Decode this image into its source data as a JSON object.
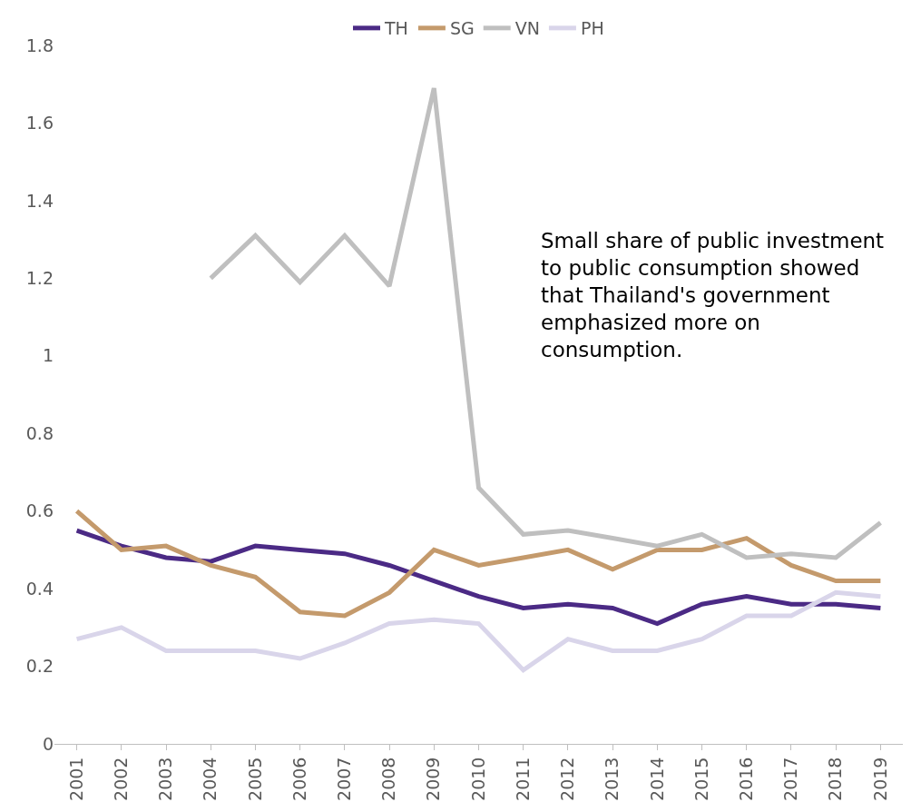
{
  "chart_data": {
    "type": "line",
    "categories": [
      "2001",
      "2002",
      "2003",
      "2004",
      "2005",
      "2006",
      "2007",
      "2008",
      "2009",
      "2010",
      "2011",
      "2012",
      "2013",
      "2014",
      "2015",
      "2016",
      "2017",
      "2018",
      "2019"
    ],
    "series": [
      {
        "name": "TH",
        "color": "#4b2a85",
        "values": [
          0.55,
          0.51,
          0.48,
          0.47,
          0.51,
          0.5,
          0.49,
          0.46,
          0.42,
          0.38,
          0.35,
          0.36,
          0.35,
          0.31,
          0.36,
          0.38,
          0.36,
          0.36,
          0.35
        ]
      },
      {
        "name": "SG",
        "color": "#c49a6c",
        "values": [
          0.6,
          0.5,
          0.51,
          0.46,
          0.43,
          0.34,
          0.33,
          0.39,
          0.5,
          0.46,
          0.48,
          0.5,
          0.45,
          0.5,
          0.5,
          0.53,
          0.46,
          0.42,
          0.42
        ]
      },
      {
        "name": "VN",
        "color": "#bfbfbf",
        "values": [
          null,
          null,
          null,
          1.2,
          1.31,
          1.19,
          1.31,
          1.18,
          1.69,
          0.66,
          0.54,
          0.55,
          0.53,
          0.51,
          0.54,
          0.48,
          0.49,
          0.48,
          0.57
        ]
      },
      {
        "name": "PH",
        "color": "#d9d5ea",
        "values": [
          0.27,
          0.3,
          0.24,
          0.24,
          0.24,
          0.22,
          0.26,
          0.31,
          0.32,
          0.31,
          0.19,
          0.27,
          0.24,
          0.24,
          0.27,
          0.33,
          0.33,
          0.39,
          0.38
        ]
      }
    ],
    "ylim": [
      0,
      1.8
    ],
    "yticks": [
      0,
      0.2,
      0.4,
      0.6,
      0.8,
      1,
      1.2,
      1.4,
      1.6,
      1.8
    ],
    "annotations": [
      "Small share of public investment\nto public consumption showed\nthat Thailand's government\nemphasized more on\nconsumption."
    ],
    "legend": "top",
    "marker": "none",
    "line_style": "solid"
  }
}
